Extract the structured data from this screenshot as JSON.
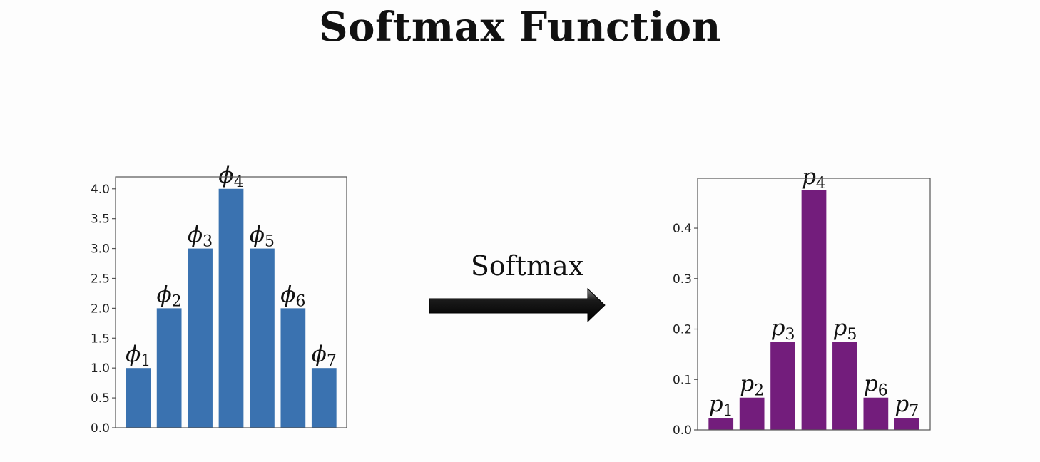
{
  "title": "Softmax Function",
  "arrow": {
    "label": "Softmax"
  },
  "colors": {
    "left_bars": "#3a72b0",
    "right_bars": "#731d7c",
    "axis": "#555555"
  },
  "chart_data": [
    {
      "type": "bar",
      "categories": [
        "1",
        "2",
        "3",
        "4",
        "5",
        "6",
        "7"
      ],
      "values": [
        1,
        2,
        3,
        4,
        3,
        2,
        1
      ],
      "bar_labels": [
        {
          "symbol": "ϕ",
          "sub": "1"
        },
        {
          "symbol": "ϕ",
          "sub": "2"
        },
        {
          "symbol": "ϕ",
          "sub": "3"
        },
        {
          "symbol": "ϕ",
          "sub": "4"
        },
        {
          "symbol": "ϕ",
          "sub": "5"
        },
        {
          "symbol": "ϕ",
          "sub": "6"
        },
        {
          "symbol": "ϕ",
          "sub": "7"
        }
      ],
      "yticks": [
        "0.0",
        "0.5",
        "1.0",
        "1.5",
        "2.0",
        "2.5",
        "3.0",
        "3.5",
        "4.0"
      ],
      "ylim": [
        0,
        4.2
      ],
      "xlabel": "",
      "ylabel": "",
      "title": "",
      "grid": false
    },
    {
      "type": "bar",
      "categories": [
        "1",
        "2",
        "3",
        "4",
        "5",
        "6",
        "7"
      ],
      "values": [
        0.024,
        0.064,
        0.175,
        0.475,
        0.175,
        0.064,
        0.024
      ],
      "bar_labels": [
        {
          "symbol": "p",
          "sub": "1"
        },
        {
          "symbol": "p",
          "sub": "2"
        },
        {
          "symbol": "p",
          "sub": "3"
        },
        {
          "symbol": "p",
          "sub": "4"
        },
        {
          "symbol": "p",
          "sub": "5"
        },
        {
          "symbol": "p",
          "sub": "6"
        },
        {
          "symbol": "p",
          "sub": "7"
        }
      ],
      "yticks": [
        "0.0",
        "0.1",
        "0.2",
        "0.3",
        "0.4"
      ],
      "ylim": [
        0,
        0.499
      ],
      "xlabel": "",
      "ylabel": "",
      "title": "",
      "grid": false
    }
  ]
}
